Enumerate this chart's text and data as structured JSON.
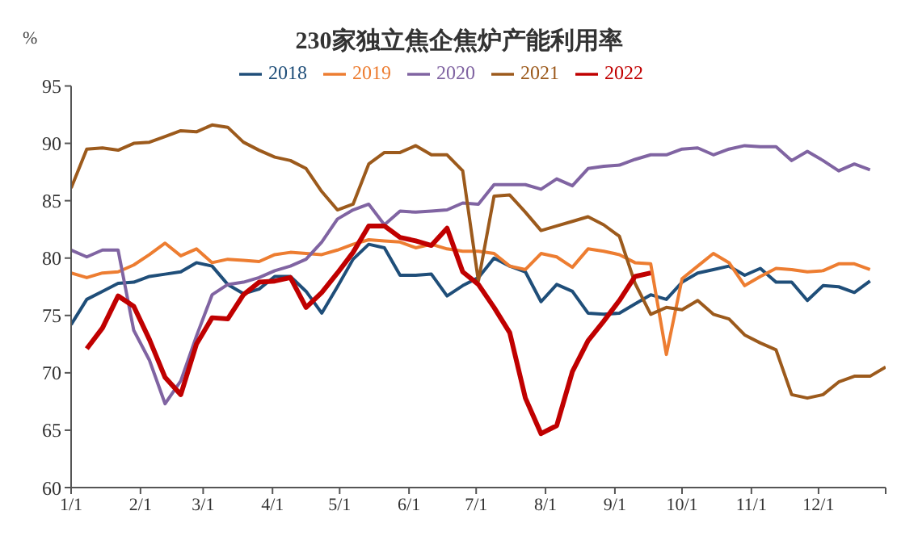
{
  "chart_data": {
    "type": "line",
    "title": "230家独立焦企焦炉产能利用率",
    "ylabel": "%",
    "x": [
      "--01-01",
      "--01-08",
      "--01-15",
      "--01-22",
      "--01-29",
      "--02-05",
      "--02-12",
      "--02-19",
      "--02-26",
      "--03-05",
      "--03-12",
      "--03-19",
      "--03-26",
      "--04-02",
      "--04-09",
      "--04-16",
      "--04-23",
      "--04-30",
      "--05-07",
      "--05-14",
      "--05-21",
      "--05-28",
      "--06-04",
      "--06-11",
      "--06-18",
      "--06-25",
      "--07-02",
      "--07-09",
      "--07-16",
      "--07-23",
      "--07-30",
      "--08-06",
      "--08-13",
      "--08-20",
      "--08-27",
      "--09-03",
      "--09-10",
      "--09-17",
      "--09-24",
      "--10-01",
      "--10-08",
      "--10-15",
      "--10-22",
      "--10-29",
      "--11-05",
      "--11-12",
      "--11-19",
      "--11-26",
      "--12-03",
      "--12-10",
      "--12-17",
      "--12-24",
      "--12-31"
    ],
    "series": [
      {
        "name": "2018",
        "color": "#1f4e79",
        "values": [
          74.2,
          76.4,
          77.1,
          77.8,
          77.9,
          78.4,
          78.6,
          78.8,
          79.6,
          79.3,
          77.7,
          76.9,
          77.3,
          78.4,
          78.4,
          77.1,
          75.2,
          77.5,
          79.9,
          81.2,
          80.9,
          78.5,
          78.5,
          78.6,
          76.7,
          77.6,
          78.3,
          80.0,
          79.3,
          78.8,
          76.2,
          77.7,
          77.1,
          75.2,
          75.1,
          75.2,
          76.0,
          76.8,
          76.4,
          77.9,
          78.7,
          79.0,
          79.3,
          78.5,
          79.1,
          77.9,
          77.9,
          76.3,
          77.6,
          77.5,
          77.0,
          78.0,
          null
        ]
      },
      {
        "name": "2019",
        "color": "#ed7d31",
        "values": [
          78.7,
          78.3,
          78.7,
          78.8,
          79.4,
          80.3,
          81.3,
          80.2,
          80.8,
          79.6,
          79.9,
          79.8,
          79.7,
          80.3,
          80.5,
          80.4,
          80.3,
          80.7,
          81.2,
          81.6,
          81.5,
          81.4,
          80.9,
          81.2,
          80.8,
          80.6,
          80.6,
          80.4,
          79.3,
          79.0,
          80.4,
          80.1,
          79.2,
          80.8,
          80.6,
          80.3,
          79.6,
          79.5,
          71.6,
          78.2,
          79.3,
          80.4,
          79.6,
          77.6,
          78.4,
          79.1,
          79.0,
          78.8,
          78.9,
          79.5,
          79.5,
          79.0,
          null
        ]
      },
      {
        "name": "2020",
        "color": "#8064a2",
        "values": [
          80.7,
          80.1,
          80.7,
          80.7,
          73.7,
          71.1,
          67.3,
          69.3,
          73.2,
          76.8,
          77.7,
          77.9,
          78.3,
          78.9,
          79.3,
          79.9,
          81.4,
          83.4,
          84.2,
          84.7,
          82.9,
          84.1,
          84.0,
          84.1,
          84.2,
          84.8,
          84.7,
          86.4,
          86.4,
          86.4,
          86.0,
          86.9,
          86.3,
          87.8,
          88.0,
          88.1,
          88.6,
          89.0,
          89.0,
          89.5,
          89.6,
          89.0,
          89.5,
          89.8,
          89.7,
          89.7,
          88.5,
          89.3,
          88.5,
          87.6,
          88.2,
          87.7,
          null
        ]
      },
      {
        "name": "2021",
        "color": "#9c5a1c",
        "values": [
          86.1,
          89.5,
          89.6,
          89.4,
          90.0,
          90.1,
          90.6,
          91.1,
          91.0,
          91.6,
          91.4,
          90.1,
          89.4,
          88.8,
          88.5,
          87.8,
          85.8,
          84.2,
          84.7,
          88.2,
          89.2,
          89.2,
          89.8,
          89.0,
          89.0,
          87.6,
          78.0,
          85.4,
          85.5,
          84.0,
          82.4,
          82.8,
          83.2,
          83.6,
          82.9,
          81.9,
          77.8,
          75.1,
          75.7,
          75.5,
          76.3,
          75.1,
          74.7,
          73.3,
          72.6,
          72.0,
          68.1,
          67.8,
          68.1,
          69.2,
          69.7,
          69.7,
          70.5
        ]
      },
      {
        "name": "2022",
        "color": "#c00000",
        "values": [
          null,
          72.1,
          73.9,
          76.7,
          75.8,
          72.9,
          69.6,
          68.1,
          72.5,
          74.8,
          74.7,
          76.8,
          77.9,
          78.0,
          78.3,
          75.7,
          77.0,
          78.7,
          80.5,
          82.8,
          82.8,
          81.8,
          81.5,
          81.1,
          82.6,
          78.8,
          77.7,
          75.7,
          73.5,
          67.8,
          64.7,
          65.4,
          70.1,
          72.8,
          74.5,
          76.3,
          78.4,
          78.7,
          null,
          null,
          null,
          null,
          null,
          null,
          null,
          null,
          null,
          null,
          null,
          null,
          null,
          null,
          null
        ]
      }
    ],
    "xlim": [
      "--01-01",
      "--12-31"
    ],
    "xticks": [
      {
        "value": "--01-01",
        "label": "1/1"
      },
      {
        "value": "--02-01",
        "label": "2/1"
      },
      {
        "value": "--03-01",
        "label": "3/1"
      },
      {
        "value": "--04-01",
        "label": "4/1"
      },
      {
        "value": "--05-01",
        "label": "5/1"
      },
      {
        "value": "--06-01",
        "label": "6/1"
      },
      {
        "value": "--07-01",
        "label": "7/1"
      },
      {
        "value": "--08-01",
        "label": "8/1"
      },
      {
        "value": "--09-01",
        "label": "9/1"
      },
      {
        "value": "--10-01",
        "label": "10/1"
      },
      {
        "value": "--11-01",
        "label": "11/1"
      },
      {
        "value": "--12-01",
        "label": "12/1"
      },
      {
        "value": "--12-31",
        "label": null
      }
    ],
    "ylim": [
      60,
      95
    ],
    "yticks": [
      60,
      65,
      70,
      75,
      80,
      85,
      90,
      95
    ],
    "legend": "top",
    "grid": false,
    "marker": "none",
    "line_style": "solid"
  }
}
